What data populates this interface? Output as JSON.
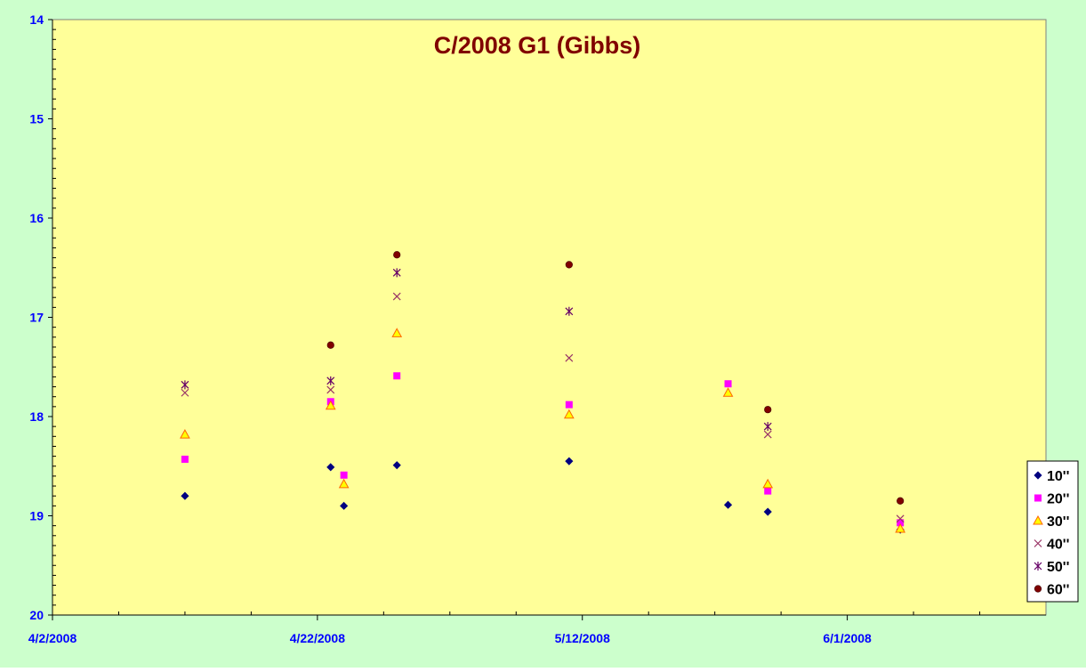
{
  "chart_data": {
    "type": "scatter",
    "title": "C/2008 G1 (Gibbs)",
    "xlabel": "",
    "ylabel": "",
    "x_axis": {
      "type": "date",
      "min": "2008-04-02",
      "max": "2008-06-16",
      "major_tick_labels": [
        "4/2/2008",
        "4/22/2008",
        "5/12/2008",
        "6/1/2008"
      ],
      "major_tick_dates": [
        "2008-04-02",
        "2008-04-22",
        "2008-05-12",
        "2008-06-01"
      ],
      "minor_tick_dates": [
        "2008-04-07",
        "2008-04-12",
        "2008-04-17",
        "2008-04-27",
        "2008-05-02",
        "2008-05-07",
        "2008-05-17",
        "2008-05-22",
        "2008-05-27",
        "2008-06-06",
        "2008-06-11"
      ]
    },
    "y_axis": {
      "min": 14,
      "max": 20,
      "reversed": true,
      "tick_labels": [
        "14",
        "15",
        "16",
        "17",
        "18",
        "19",
        "20"
      ],
      "tick_values": [
        14,
        15,
        16,
        17,
        18,
        19,
        20
      ],
      "minor_step": 0.1
    },
    "grid": false,
    "legend_position": "right",
    "series": [
      {
        "name": "10''",
        "marker": "diamond",
        "color": "#000080",
        "points": [
          {
            "x": "2008-04-12",
            "y": 18.8
          },
          {
            "x": "2008-04-23",
            "y": 18.51
          },
          {
            "x": "2008-04-24",
            "y": 18.9
          },
          {
            "x": "2008-04-28",
            "y": 18.49
          },
          {
            "x": "2008-05-11",
            "y": 18.45
          },
          {
            "x": "2008-05-23",
            "y": 18.89
          },
          {
            "x": "2008-05-26",
            "y": 18.96
          },
          {
            "x": "2008-06-05",
            "y": 19.14
          }
        ]
      },
      {
        "name": "20''",
        "marker": "square",
        "color": "#ff00ff",
        "points": [
          {
            "x": "2008-04-12",
            "y": 18.43
          },
          {
            "x": "2008-04-23",
            "y": 17.85
          },
          {
            "x": "2008-04-24",
            "y": 18.59
          },
          {
            "x": "2008-04-28",
            "y": 17.59
          },
          {
            "x": "2008-05-11",
            "y": 17.88
          },
          {
            "x": "2008-05-23",
            "y": 17.67
          },
          {
            "x": "2008-05-26",
            "y": 18.75
          },
          {
            "x": "2008-06-05",
            "y": 19.07
          }
        ]
      },
      {
        "name": "30''",
        "marker": "triangle",
        "color": "#ffff00",
        "stroke": "#ff6600",
        "points": [
          {
            "x": "2008-04-12",
            "y": 18.18
          },
          {
            "x": "2008-04-23",
            "y": 17.89
          },
          {
            "x": "2008-04-24",
            "y": 18.68
          },
          {
            "x": "2008-04-28",
            "y": 17.16
          },
          {
            "x": "2008-05-11",
            "y": 17.98
          },
          {
            "x": "2008-05-23",
            "y": 17.76
          },
          {
            "x": "2008-05-26",
            "y": 18.68
          },
          {
            "x": "2008-06-05",
            "y": 19.13
          }
        ]
      },
      {
        "name": "40''",
        "marker": "x",
        "color": "#993366",
        "points": [
          {
            "x": "2008-04-12",
            "y": 17.76
          },
          {
            "x": "2008-04-23",
            "y": 17.73
          },
          {
            "x": "2008-04-28",
            "y": 16.79
          },
          {
            "x": "2008-05-11",
            "y": 17.41
          },
          {
            "x": "2008-05-26",
            "y": 18.18
          },
          {
            "x": "2008-06-05",
            "y": 19.03
          }
        ]
      },
      {
        "name": "50''",
        "marker": "star",
        "color": "#660066",
        "points": [
          {
            "x": "2008-04-12",
            "y": 17.68
          },
          {
            "x": "2008-04-23",
            "y": 17.64
          },
          {
            "x": "2008-04-28",
            "y": 16.55
          },
          {
            "x": "2008-05-11",
            "y": 16.94
          },
          {
            "x": "2008-05-26",
            "y": 18.1
          }
        ]
      },
      {
        "name": "60''",
        "marker": "circle",
        "color": "#800000",
        "points": [
          {
            "x": "2008-04-23",
            "y": 17.28
          },
          {
            "x": "2008-04-28",
            "y": 16.37
          },
          {
            "x": "2008-05-11",
            "y": 16.47
          },
          {
            "x": "2008-05-26",
            "y": 17.93
          },
          {
            "x": "2008-06-05",
            "y": 18.85
          }
        ]
      }
    ],
    "colors": {
      "outer_background": "#ccffcc",
      "plot_background": "#ffff99",
      "title": "#800000",
      "tick_label": "#0000ff"
    }
  }
}
